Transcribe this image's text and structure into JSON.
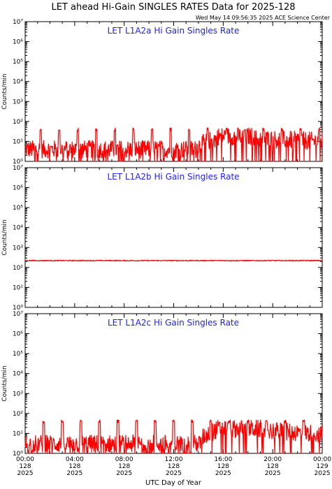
{
  "title": "LET ahead Hi-Gain SINGLES RATES Data for 2025-128",
  "timestamp": "Wed May 14 09:56:35 2025 ACE Science Center",
  "colors": {
    "data": "#ff0000",
    "panel_label": "#2020ff",
    "axis": "#000000"
  },
  "chart_data": [
    {
      "type": "line",
      "title": "LET L1A2a Hi Gain Singles Rate",
      "ylabel": "Counts/min",
      "yscale": "log",
      "ylim": [
        1,
        10000000
      ],
      "yticks": [
        "10⁰",
        "10¹",
        "10²",
        "10³",
        "10⁴",
        "10⁵",
        "10⁶",
        "10⁷"
      ],
      "xlim_hours": [
        0,
        24
      ],
      "baseline": 4,
      "spike_peak": 40,
      "spike_hours": [
        1.25,
        2.75,
        4.25,
        5.75,
        7.25,
        8.75,
        10.25,
        11.75,
        13.25,
        14.75,
        16.25,
        17.75,
        19.25,
        20.75,
        22.25,
        23.75
      ],
      "segments": [
        {
          "x": [
            0,
            13.8
          ],
          "y": [
            4,
            4
          ]
        },
        {
          "x": [
            13.8,
            15.5
          ],
          "y": [
            5,
            14
          ]
        },
        {
          "x": [
            15.5,
            18.5
          ],
          "y": [
            18,
            18
          ]
        },
        {
          "x": [
            18.5,
            24
          ],
          "y": [
            14,
            10
          ]
        }
      ]
    },
    {
      "type": "line",
      "title": "LET L1A2b Hi Gain Singles Rate",
      "ylabel": "Counts/min",
      "yscale": "log",
      "ylim": [
        1,
        10000000
      ],
      "yticks": [
        "10⁰",
        "10¹",
        "10²",
        "10³",
        "10⁴",
        "10⁵",
        "10⁶",
        "10⁷"
      ],
      "xlim_hours": [
        0,
        24
      ],
      "segments": [
        {
          "x": [
            0,
            24
          ],
          "y": [
            220,
            220
          ]
        }
      ]
    },
    {
      "type": "line",
      "title": "LET L1A2c Hi Gain Singles Rate",
      "ylabel": "Counts/min",
      "yscale": "log",
      "ylim": [
        1,
        10000000
      ],
      "yticks": [
        "10⁰",
        "10¹",
        "10²",
        "10³",
        "10⁴",
        "10⁵",
        "10⁶",
        "10⁷"
      ],
      "xlim_hours": [
        0,
        24
      ],
      "baseline": 3,
      "spike_peak": 40,
      "spike_hours": [
        1.5,
        3.0,
        4.5,
        6.0,
        7.5,
        9.0,
        10.5,
        12.0,
        13.5,
        15.0,
        16.5,
        18.0,
        19.5,
        21.0,
        22.5
      ],
      "segments": [
        {
          "x": [
            0,
            14.2
          ],
          "y": [
            3,
            3
          ]
        },
        {
          "x": [
            14.2,
            15.5
          ],
          "y": [
            5,
            15
          ]
        },
        {
          "x": [
            15.5,
            19.5
          ],
          "y": [
            17,
            17
          ]
        },
        {
          "x": [
            19.5,
            24
          ],
          "y": [
            14,
            9
          ]
        }
      ]
    }
  ],
  "x_axis": {
    "label": "UTC Day of Year",
    "ticks": [
      {
        "hours": 0,
        "time": "00:00",
        "day": "128",
        "year": "2025"
      },
      {
        "hours": 4,
        "time": "04:00",
        "day": "128",
        "year": "2025"
      },
      {
        "hours": 8,
        "time": "08:00",
        "day": "128",
        "year": "2025"
      },
      {
        "hours": 12,
        "time": "12:00",
        "day": "128",
        "year": "2025"
      },
      {
        "hours": 16,
        "time": "16:00",
        "day": "128",
        "year": "2025"
      },
      {
        "hours": 20,
        "time": "20:00",
        "day": "128",
        "year": "2025"
      },
      {
        "hours": 24,
        "time": "00:00",
        "day": "129",
        "year": "2025"
      }
    ]
  }
}
